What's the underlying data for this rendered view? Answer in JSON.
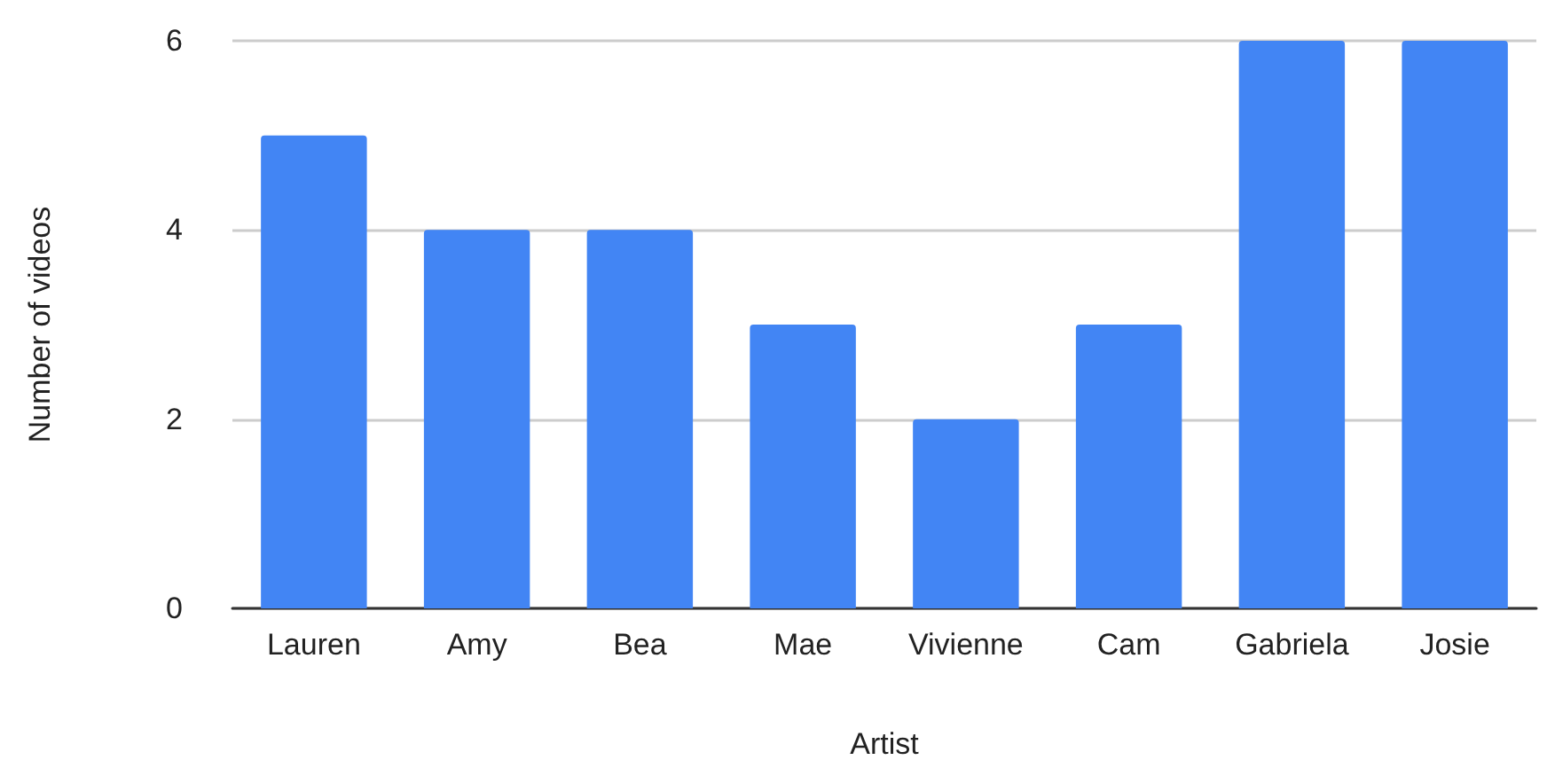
{
  "chart_data": {
    "type": "bar",
    "xlabel": "Artist",
    "ylabel": "Number of videos",
    "categories": [
      "Lauren",
      "Amy",
      "Bea",
      "Mae",
      "Vivienne",
      "Cam",
      "Gabriela",
      "Josie"
    ],
    "values": [
      5,
      4,
      4,
      3,
      2,
      3,
      6,
      6
    ],
    "color": "#4285f4",
    "ylim": [
      0,
      6
    ],
    "yticks": [
      0,
      2,
      4,
      6
    ],
    "grid": "y"
  }
}
